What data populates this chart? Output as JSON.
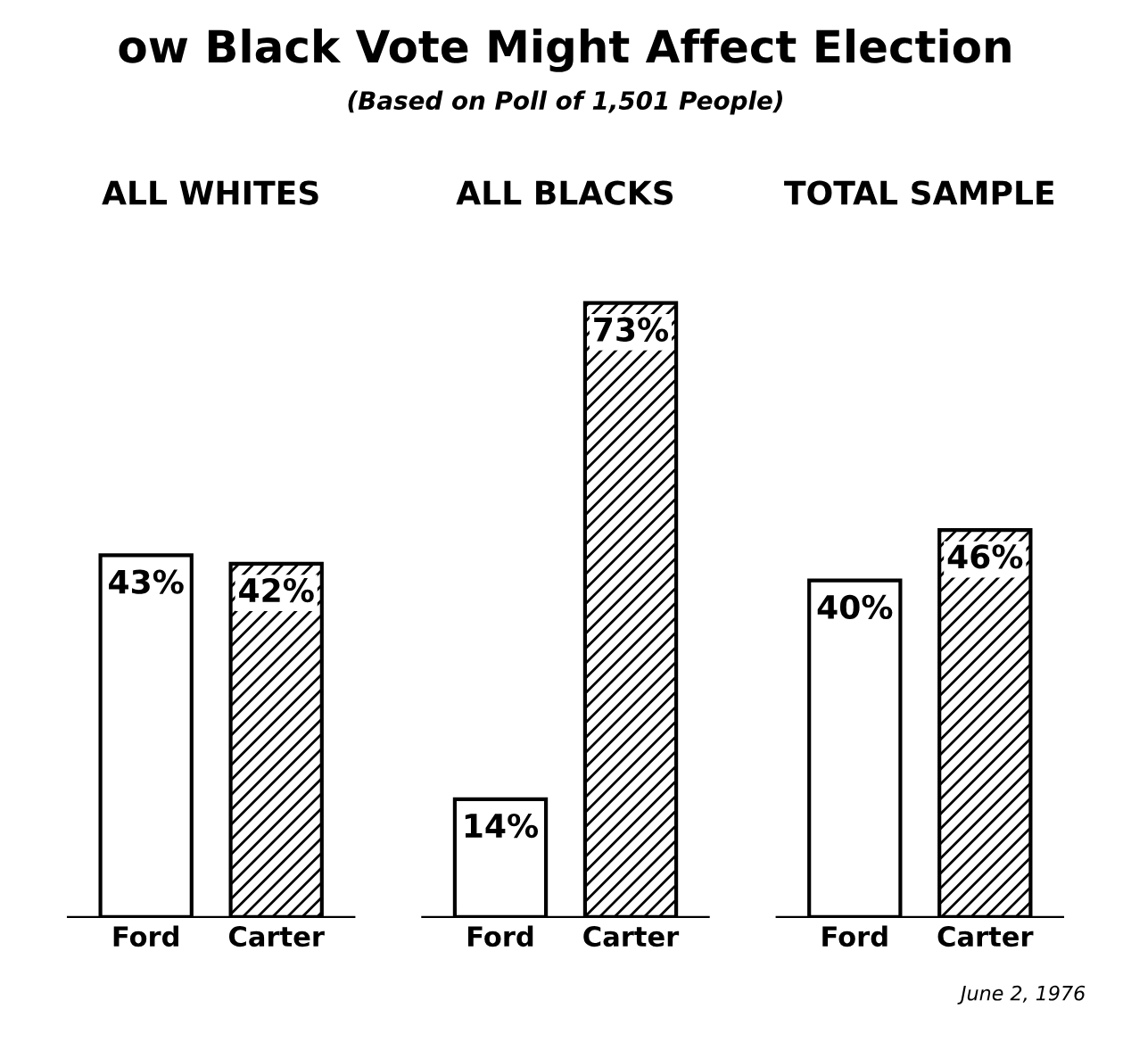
{
  "chart_data": [
    {
      "type": "bar",
      "title": "ALL WHITES",
      "categories": [
        "Ford",
        "Carter"
      ],
      "values": [
        43,
        42
      ],
      "colors": [
        "#ffffff",
        "#000000"
      ],
      "value_labels": [
        "43%",
        "42%"
      ],
      "annotations": [
        "ow Black Vote Might Affect Election",
        "(Based on Poll of 1,501 People)",
        "June 2, 1976"
      ]
    },
    {
      "type": "bar",
      "title": "ALL BLACKS",
      "categories": [
        "Ford",
        "Carter"
      ],
      "values": [
        14,
        73
      ],
      "colors": [
        "#ffffff",
        "#000000"
      ],
      "value_labels": [
        "14%",
        "73%"
      ]
    },
    {
      "type": "bar",
      "title": "TOTAL SAMPLE",
      "categories": [
        "Ford",
        "Carter"
      ],
      "values": [
        40,
        46
      ],
      "colors": [
        "#ffffff",
        "#000000"
      ],
      "value_labels": [
        "40%",
        "46%"
      ]
    }
  ]
}
